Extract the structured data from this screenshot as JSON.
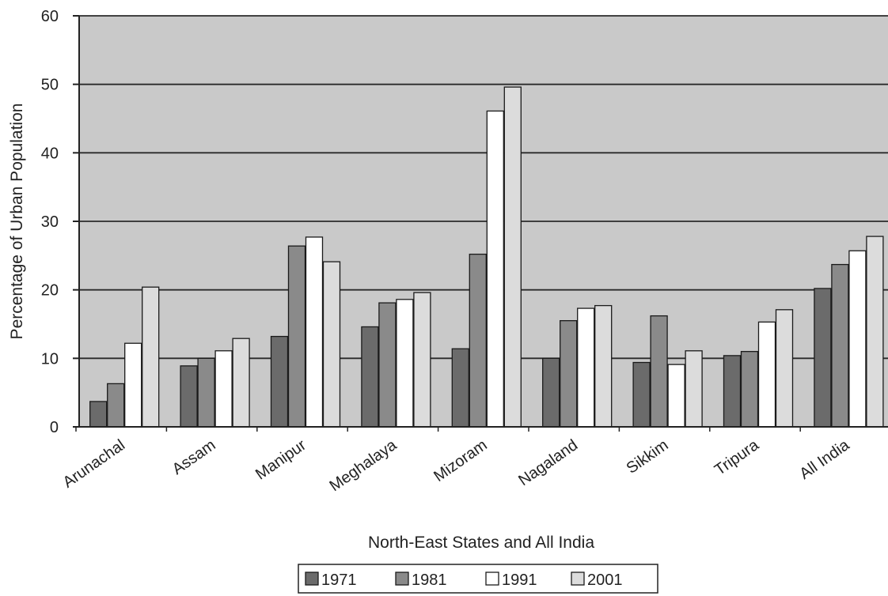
{
  "chart_data": {
    "type": "bar",
    "title": "",
    "xlabel": "North-East States and All India",
    "ylabel": "Percentage of Urban Population",
    "ylim": [
      0,
      60
    ],
    "yticks": [
      0,
      10,
      20,
      30,
      40,
      50,
      60
    ],
    "grid": true,
    "legend_position": "bottom",
    "categories": [
      "Arunachal",
      "Assam",
      "Manipur",
      "Meghalaya",
      "Mizoram",
      "Nagaland",
      "Sikkim",
      "Tripura",
      "All India"
    ],
    "series": [
      {
        "name": "1971",
        "color": "#6b6b6b",
        "values": [
          3.7,
          8.9,
          13.2,
          14.6,
          11.4,
          10.0,
          9.4,
          10.4,
          20.2
        ]
      },
      {
        "name": "1981",
        "color": "#8a8a8a",
        "values": [
          6.3,
          10.0,
          26.4,
          18.1,
          25.2,
          15.5,
          16.2,
          11.0,
          23.7
        ]
      },
      {
        "name": "1991",
        "color": "#ffffff",
        "values": [
          12.2,
          11.1,
          27.7,
          18.6,
          46.1,
          17.3,
          9.1,
          15.3,
          25.7
        ]
      },
      {
        "name": "2001",
        "color": "#dcdcdc",
        "values": [
          20.4,
          12.9,
          24.1,
          19.6,
          49.6,
          17.7,
          11.1,
          17.1,
          27.8
        ]
      }
    ]
  }
}
